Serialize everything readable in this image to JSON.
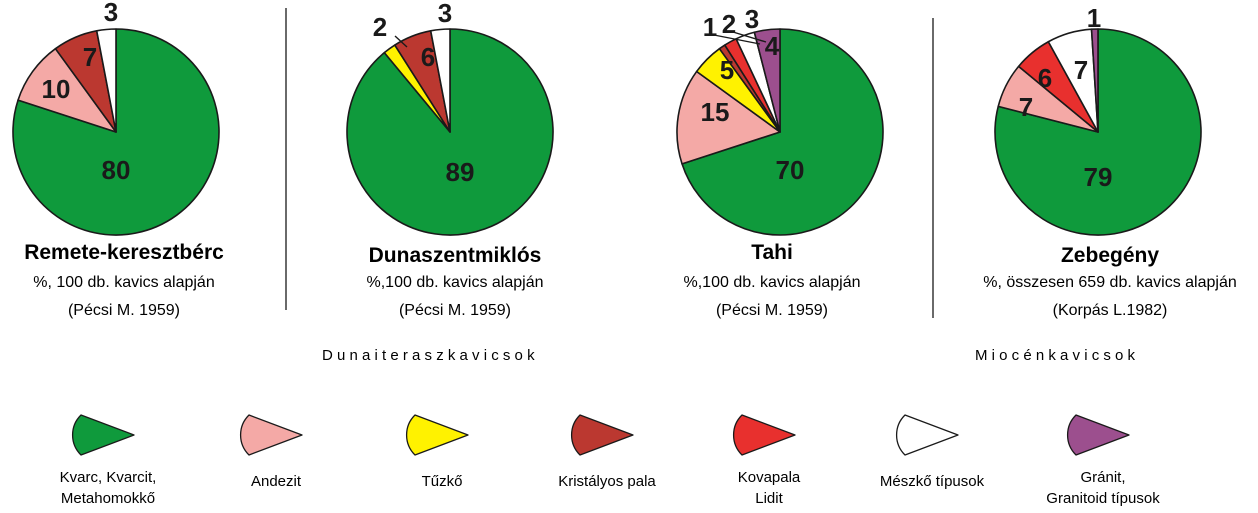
{
  "colors": {
    "kvarc": "#0f9a3c",
    "andezit": "#f4a9a6",
    "tuzko": "#fff200",
    "kristalyos_pala": "#bb3830",
    "kovapala": "#e8302e",
    "meszko": "#ffffff",
    "granit": "#9c4f8e",
    "stroke": "#1a1a1a"
  },
  "chart_data": [
    {
      "type": "pie",
      "title": "Remete-keresztbérc",
      "subtitle": "%, 100 db. kavics alapján",
      "source": "(Pécsi M. 1959)",
      "slices": [
        {
          "category": "kvarc",
          "value": 80,
          "label": "80"
        },
        {
          "category": "andezit",
          "value": 10,
          "label": "10"
        },
        {
          "category": "kristalyos_pala",
          "value": 7,
          "label": "7"
        },
        {
          "category": "meszko",
          "value": 3,
          "label": "3"
        }
      ]
    },
    {
      "type": "pie",
      "title": "Dunaszentmiklós",
      "subtitle": "%,100 db. kavics alapján",
      "source": "(Pécsi M. 1959)",
      "slices": [
        {
          "category": "kvarc",
          "value": 89,
          "label": "89"
        },
        {
          "category": "tuzko",
          "value": 2,
          "label": "2"
        },
        {
          "category": "kristalyos_pala",
          "value": 6,
          "label": "6"
        },
        {
          "category": "meszko",
          "value": 3,
          "label": "3"
        }
      ]
    },
    {
      "type": "pie",
      "title": "Tahi",
      "subtitle": "%,100 db. kavics alapján",
      "source": "(Pécsi M. 1959)",
      "slices": [
        {
          "category": "kvarc",
          "value": 70,
          "label": "70"
        },
        {
          "category": "andezit",
          "value": 15,
          "label": "15"
        },
        {
          "category": "tuzko",
          "value": 5,
          "label": "5"
        },
        {
          "category": "kristalyos_pala",
          "value": 1,
          "label": "1"
        },
        {
          "category": "kovapala",
          "value": 2,
          "label": "2"
        },
        {
          "category": "meszko",
          "value": 3,
          "label": "3"
        },
        {
          "category": "granit",
          "value": 4,
          "label": "4"
        }
      ]
    },
    {
      "type": "pie",
      "title": "Zebegény",
      "subtitle": "%, összesen 659 db. kavics alapján",
      "source": "(Korpás L.1982)",
      "slices": [
        {
          "category": "kvarc",
          "value": 79,
          "label": "79"
        },
        {
          "category": "andezit",
          "value": 7,
          "label": "7"
        },
        {
          "category": "kovapala",
          "value": 6,
          "label": "6"
        },
        {
          "category": "meszko",
          "value": 7,
          "label": "7"
        },
        {
          "category": "granit",
          "value": 1,
          "label": "1"
        }
      ]
    }
  ],
  "groups": {
    "terasz": "D u n a i     t e r a s z k a v i c s o k",
    "miocen": "M i o c é n   k a v i c s o k"
  },
  "legend": [
    {
      "category": "kvarc",
      "lines": [
        "Kvarc, Kvarcit,",
        "Metahomokkő"
      ]
    },
    {
      "category": "andezit",
      "lines": [
        "Andezit"
      ]
    },
    {
      "category": "tuzko",
      "lines": [
        "Tűzkő"
      ]
    },
    {
      "category": "kristalyos_pala",
      "lines": [
        "Kristályos pala"
      ]
    },
    {
      "category": "kovapala",
      "lines": [
        "Kovapala",
        "Lidit"
      ]
    },
    {
      "category": "meszko",
      "lines": [
        "Mészkő típusok"
      ]
    },
    {
      "category": "granit",
      "lines": [
        "Gránit,",
        "Granitoid típusok"
      ]
    }
  ]
}
